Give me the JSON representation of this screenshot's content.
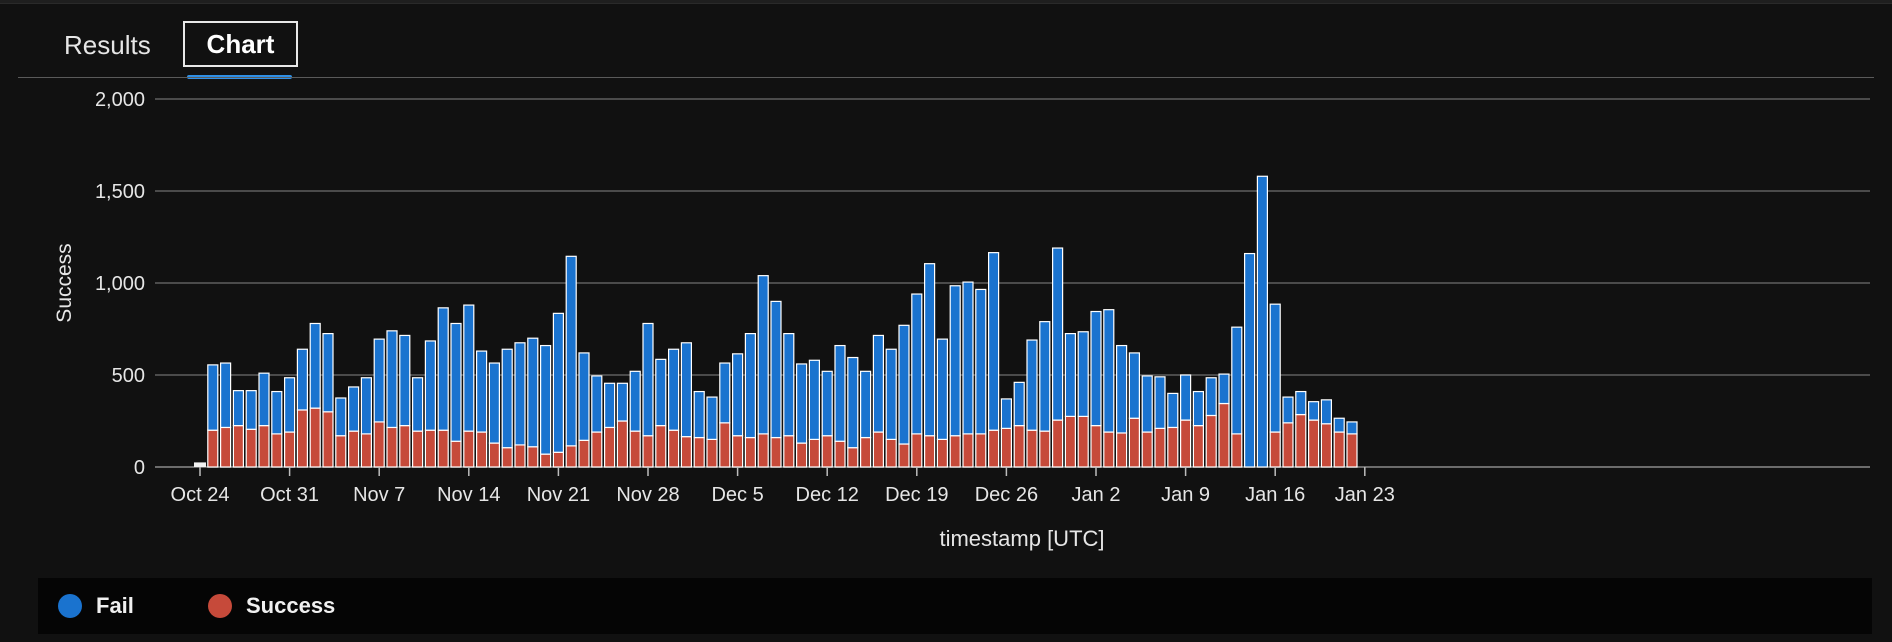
{
  "tabs": {
    "results_label": "Results",
    "chart_label": "Chart"
  },
  "colors": {
    "fail": "#1a73cf",
    "success": "#c64a3a",
    "bar_stroke": "#ffffff",
    "grid": "#5f5f5f",
    "axis_text": "#e6e6e6",
    "tab_accent": "#2f8fe5"
  },
  "legend": {
    "items": [
      {
        "label": "Fail",
        "color": "#1a73cf"
      },
      {
        "label": "Success",
        "color": "#c64a3a"
      }
    ]
  },
  "chart_data": {
    "type": "bar",
    "stacked": true,
    "xlabel": "timestamp [UTC]",
    "ylabel": "Success",
    "ylim": [
      0,
      2000
    ],
    "yticks": [
      {
        "value": 0,
        "label": "0"
      },
      {
        "value": 500,
        "label": "500"
      },
      {
        "value": 1000,
        "label": "1,000"
      },
      {
        "value": 1500,
        "label": "1,500"
      },
      {
        "value": 2000,
        "label": "2,000"
      }
    ],
    "xticks": [
      {
        "day": 0,
        "label": "Oct 24"
      },
      {
        "day": 7,
        "label": "Oct 31"
      },
      {
        "day": 14,
        "label": "Nov 7"
      },
      {
        "day": 21,
        "label": "Nov 14"
      },
      {
        "day": 28,
        "label": "Nov 21"
      },
      {
        "day": 35,
        "label": "Nov 28"
      },
      {
        "day": 42,
        "label": "Dec 5"
      },
      {
        "day": 49,
        "label": "Dec 12"
      },
      {
        "day": 56,
        "label": "Dec 19"
      },
      {
        "day": 63,
        "label": "Dec 26"
      },
      {
        "day": 70,
        "label": "Jan 2"
      },
      {
        "day": 77,
        "label": "Jan 9"
      },
      {
        "day": 84,
        "label": "Jan 16"
      },
      {
        "day": 91,
        "label": "Jan 23"
      }
    ],
    "grid": true,
    "legend_position": "bottom",
    "series": [
      {
        "name": "Success",
        "values": [
          0,
          200,
          215,
          225,
          205,
          225,
          180,
          190,
          310,
          320,
          300,
          170,
          195,
          180,
          245,
          215,
          225,
          195,
          200,
          200,
          140,
          195,
          190,
          130,
          105,
          120,
          110,
          70,
          80,
          115,
          145,
          190,
          215,
          250,
          195,
          170,
          225,
          200,
          165,
          160,
          150,
          240,
          170,
          160,
          180,
          160,
          170,
          130,
          150,
          170,
          140,
          105,
          160,
          190,
          150,
          125,
          180,
          170,
          150,
          170,
          180,
          180,
          200,
          210,
          225,
          200,
          195,
          255,
          275,
          275,
          225,
          190,
          185,
          265,
          190,
          210,
          215,
          255,
          225,
          280,
          345,
          180,
          0,
          0,
          190,
          240,
          285,
          255,
          235,
          190,
          180
        ]
      },
      {
        "name": "Fail",
        "values": [
          25,
          355,
          350,
          190,
          210,
          285,
          230,
          295,
          330,
          460,
          425,
          205,
          240,
          305,
          450,
          525,
          490,
          290,
          485,
          665,
          640,
          685,
          440,
          435,
          535,
          555,
          590,
          590,
          755,
          1030,
          475,
          305,
          240,
          205,
          325,
          610,
          360,
          440,
          510,
          250,
          230,
          325,
          445,
          565,
          860,
          740,
          555,
          430,
          430,
          350,
          520,
          490,
          360,
          525,
          490,
          645,
          760,
          935,
          545,
          815,
          825,
          785,
          965,
          160,
          235,
          490,
          595,
          935,
          450,
          460,
          620,
          665,
          475,
          355,
          305,
          280,
          185,
          245,
          185,
          205,
          160,
          580,
          1160,
          1580,
          695,
          140,
          125,
          100,
          130,
          75,
          65
        ]
      }
    ]
  }
}
